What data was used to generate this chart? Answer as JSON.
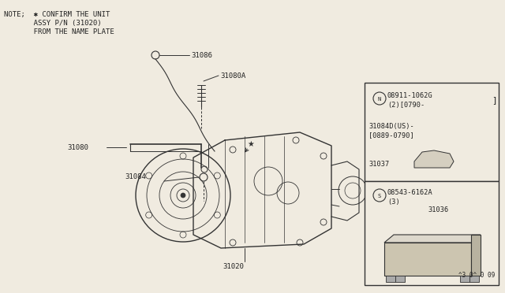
{
  "bg_color": "#f0ebe0",
  "line_color": "#333333",
  "text_color": "#222222",
  "note_lines": [
    "NOTE;  ✱ CONFIRM THE UNIT",
    "       ASSY P/N (31020)",
    "       FROM THE NAME PLATE"
  ],
  "figsize": [
    6.4,
    3.72
  ],
  "dpi": 100
}
